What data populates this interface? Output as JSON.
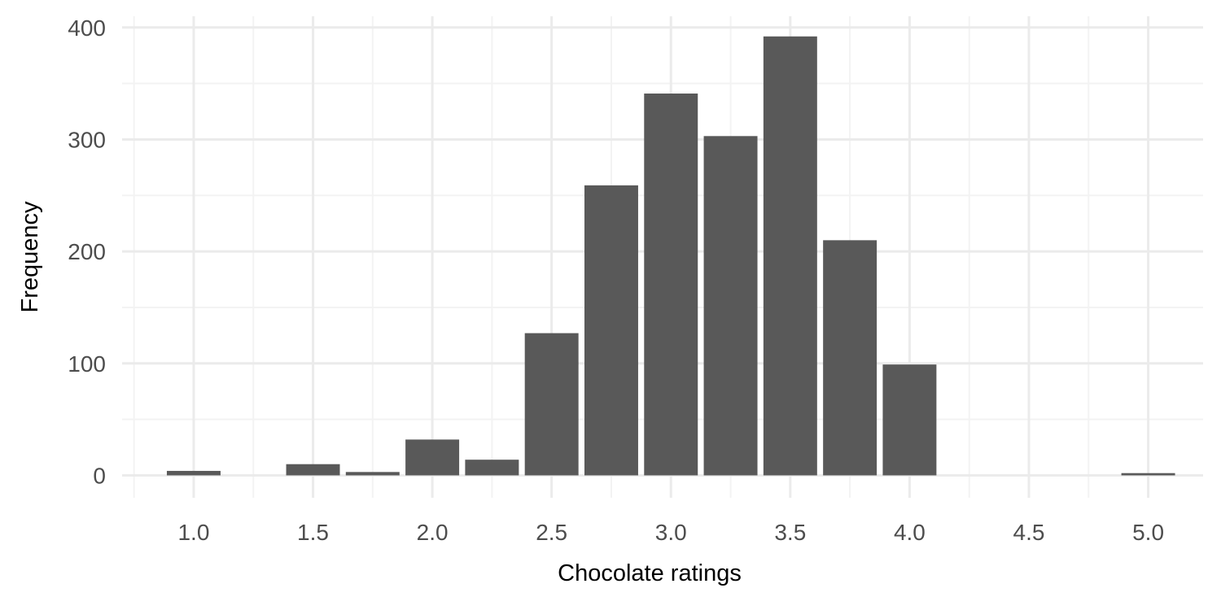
{
  "chart_data": {
    "type": "bar",
    "title": "",
    "xlabel": "Chocolate ratings",
    "ylabel": "Frequency",
    "x": [
      1.0,
      1.5,
      1.75,
      2.0,
      2.25,
      2.5,
      2.75,
      3.0,
      3.25,
      3.5,
      3.75,
      4.0,
      5.0
    ],
    "values": [
      4,
      10,
      3,
      32,
      14,
      127,
      259,
      341,
      303,
      392,
      210,
      99,
      2
    ],
    "bar_width": 0.225,
    "xlim": [
      0.7,
      5.23
    ],
    "ylim": [
      -20,
      410
    ],
    "x_ticks": [
      1.0,
      1.5,
      2.0,
      2.5,
      3.0,
      3.5,
      4.0,
      4.5,
      5.0
    ],
    "x_tick_labels": [
      "1.0",
      "1.5",
      "2.0",
      "2.5",
      "3.0",
      "3.5",
      "4.0",
      "4.5",
      "5.0"
    ],
    "y_ticks": [
      0,
      100,
      200,
      300,
      400
    ],
    "y_tick_labels": [
      "0",
      "100",
      "200",
      "300",
      "400"
    ],
    "grid": true,
    "colors": {
      "bar": "#595959",
      "grid": "#ebebeb",
      "tick_text": "#4d4d4d"
    }
  }
}
